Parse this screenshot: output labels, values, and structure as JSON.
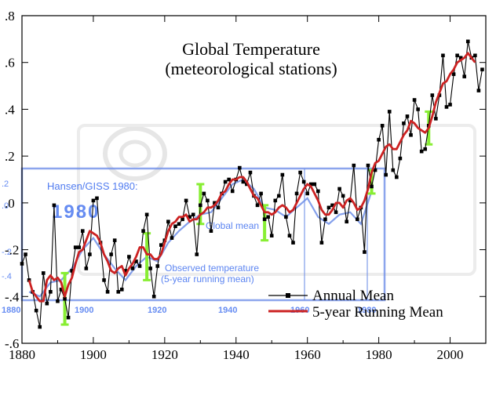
{
  "chart_data": {
    "type": "line",
    "title": "Global Temperature",
    "subtitle": "(meteorological stations)",
    "xlabel": "",
    "ylabel": "",
    "xlim": [
      1880,
      2010
    ],
    "ylim": [
      -0.6,
      0.8
    ],
    "x_ticks": [
      1880,
      1900,
      1920,
      1940,
      1960,
      1980,
      2000
    ],
    "y_ticks": [
      -0.6,
      -0.4,
      -0.2,
      0.0,
      0.2,
      0.4,
      0.6,
      0.8
    ],
    "y_tick_labels": [
      "-.6",
      "-.4",
      "-.2",
      ".0",
      ".2",
      ".4",
      ".6",
      ".8"
    ],
    "grid": false,
    "legend": {
      "placement": "bottom-right",
      "entries": [
        {
          "name": "Annual Mean",
          "color": "#000000",
          "marker": "square"
        },
        {
          "name": "5-year Running Mean",
          "color": "#cc2222",
          "marker": "none"
        }
      ]
    },
    "series": [
      {
        "name": "Annual Mean",
        "color": "#000000",
        "x": [
          1880,
          1881,
          1882,
          1883,
          1884,
          1885,
          1886,
          1887,
          1888,
          1889,
          1890,
          1891,
          1892,
          1893,
          1894,
          1895,
          1896,
          1897,
          1898,
          1899,
          1900,
          1901,
          1902,
          1903,
          1904,
          1905,
          1906,
          1907,
          1908,
          1909,
          1910,
          1911,
          1912,
          1913,
          1914,
          1915,
          1916,
          1917,
          1918,
          1919,
          1920,
          1921,
          1922,
          1923,
          1924,
          1925,
          1926,
          1927,
          1928,
          1929,
          1930,
          1931,
          1932,
          1933,
          1934,
          1935,
          1936,
          1937,
          1938,
          1939,
          1940,
          1941,
          1942,
          1943,
          1944,
          1945,
          1946,
          1947,
          1948,
          1949,
          1950,
          1951,
          1952,
          1953,
          1954,
          1955,
          1956,
          1957,
          1958,
          1959,
          1960,
          1961,
          1962,
          1963,
          1964,
          1965,
          1966,
          1967,
          1968,
          1969,
          1970,
          1971,
          1972,
          1973,
          1974,
          1975,
          1976,
          1977,
          1978,
          1979,
          1980,
          1981,
          1982,
          1983,
          1984,
          1985,
          1986,
          1987,
          1988,
          1989,
          1990,
          1991,
          1992,
          1993,
          1994,
          1995,
          1996,
          1997,
          1998,
          1999,
          2000,
          2001,
          2002,
          2003,
          2004,
          2005,
          2006,
          2007,
          2008,
          2009
        ],
        "values": [
          -0.26,
          -0.22,
          -0.33,
          -0.38,
          -0.46,
          -0.53,
          -0.3,
          -0.43,
          -0.38,
          -0.01,
          -0.42,
          -0.37,
          -0.41,
          -0.49,
          -0.29,
          -0.19,
          -0.19,
          -0.12,
          -0.28,
          -0.22,
          0.01,
          0.02,
          -0.17,
          -0.33,
          -0.38,
          -0.22,
          -0.16,
          -0.38,
          -0.37,
          -0.29,
          -0.23,
          -0.28,
          -0.25,
          -0.27,
          -0.12,
          -0.05,
          -0.28,
          -0.4,
          -0.27,
          -0.18,
          -0.16,
          -0.08,
          -0.15,
          -0.1,
          -0.09,
          -0.07,
          0.01,
          -0.06,
          -0.05,
          -0.22,
          -0.01,
          0.04,
          0.01,
          -0.12,
          0.0,
          -0.02,
          0.04,
          0.09,
          0.1,
          0.05,
          0.1,
          0.15,
          0.09,
          0.08,
          0.13,
          0.03,
          -0.01,
          0.04,
          -0.07,
          -0.06,
          -0.14,
          0.01,
          0.03,
          0.12,
          -0.06,
          -0.14,
          -0.17,
          0.04,
          0.13,
          0.09,
          0.04,
          0.08,
          0.08,
          0.05,
          -0.17,
          -0.07,
          -0.02,
          -0.01,
          -0.04,
          0.06,
          0.03,
          -0.08,
          0.01,
          0.16,
          -0.07,
          -0.02,
          -0.21,
          0.16,
          0.07,
          0.14,
          0.27,
          0.33,
          0.12,
          0.39,
          0.14,
          0.11,
          0.19,
          0.34,
          0.37,
          0.29,
          0.44,
          0.4,
          0.22,
          0.23,
          0.33,
          0.46,
          0.36,
          0.46,
          0.63,
          0.41,
          0.42,
          0.55,
          0.63,
          0.62,
          0.54,
          0.69,
          0.62,
          0.63,
          0.48,
          0.57
        ]
      },
      {
        "name": "5-year Running Mean",
        "color": "#cc2222",
        "x": [
          1882,
          1883,
          1884,
          1885,
          1886,
          1887,
          1888,
          1889,
          1890,
          1891,
          1892,
          1893,
          1894,
          1895,
          1896,
          1897,
          1898,
          1899,
          1900,
          1901,
          1902,
          1903,
          1904,
          1905,
          1906,
          1907,
          1908,
          1909,
          1910,
          1911,
          1912,
          1913,
          1914,
          1915,
          1916,
          1917,
          1918,
          1919,
          1920,
          1921,
          1922,
          1923,
          1924,
          1925,
          1926,
          1927,
          1928,
          1929,
          1930,
          1931,
          1932,
          1933,
          1934,
          1935,
          1936,
          1937,
          1938,
          1939,
          1940,
          1941,
          1942,
          1943,
          1944,
          1945,
          1946,
          1947,
          1948,
          1949,
          1950,
          1951,
          1952,
          1953,
          1954,
          1955,
          1956,
          1957,
          1958,
          1959,
          1960,
          1961,
          1962,
          1963,
          1964,
          1965,
          1966,
          1967,
          1968,
          1969,
          1970,
          1971,
          1972,
          1973,
          1974,
          1975,
          1976,
          1977,
          1978,
          1979,
          1980,
          1981,
          1982,
          1983,
          1984,
          1985,
          1986,
          1987,
          1988,
          1989,
          1990,
          1991,
          1992,
          1993,
          1994,
          1995,
          1996,
          1997,
          1998,
          1999,
          2000,
          2001,
          2002,
          2003,
          2004,
          2005,
          2006,
          2007
        ],
        "values": [
          -0.33,
          -0.38,
          -0.4,
          -0.42,
          -0.42,
          -0.33,
          -0.31,
          -0.33,
          -0.32,
          -0.34,
          -0.4,
          -0.35,
          -0.32,
          -0.26,
          -0.21,
          -0.2,
          -0.16,
          -0.12,
          -0.13,
          -0.14,
          -0.17,
          -0.22,
          -0.25,
          -0.29,
          -0.3,
          -0.28,
          -0.27,
          -0.31,
          -0.28,
          -0.26,
          -0.23,
          -0.19,
          -0.19,
          -0.22,
          -0.22,
          -0.24,
          -0.24,
          -0.22,
          -0.17,
          -0.12,
          -0.09,
          -0.08,
          -0.06,
          -0.06,
          -0.05,
          -0.08,
          -0.07,
          -0.07,
          -0.05,
          -0.04,
          -0.02,
          -0.02,
          -0.01,
          0.01,
          0.04,
          0.05,
          0.08,
          0.1,
          0.1,
          0.11,
          0.11,
          0.09,
          0.06,
          0.03,
          0.02,
          -0.01,
          -0.04,
          -0.04,
          -0.05,
          -0.04,
          -0.02,
          -0.01,
          -0.02,
          -0.04,
          -0.03,
          0.0,
          0.03,
          0.06,
          0.08,
          0.07,
          0.04,
          0.01,
          -0.03,
          -0.05,
          -0.05,
          -0.03,
          0.0,
          0.0,
          -0.02,
          0.01,
          0.02,
          0.0,
          -0.03,
          -0.02,
          0.01,
          0.06,
          0.13,
          0.17,
          0.18,
          0.21,
          0.24,
          0.25,
          0.23,
          0.23,
          0.26,
          0.29,
          0.31,
          0.35,
          0.34,
          0.32,
          0.31,
          0.3,
          0.32,
          0.37,
          0.43,
          0.47,
          0.51,
          0.52,
          0.55,
          0.57,
          0.6,
          0.61,
          0.62,
          0.64,
          0.62,
          0.6
        ]
      }
    ],
    "error_bars": {
      "color": "#88ee33",
      "x": [
        1892,
        1915,
        1930,
        1948,
        1978,
        1994
      ],
      "low": [
        -0.52,
        -0.33,
        -0.09,
        -0.16,
        0.04,
        0.25
      ],
      "high": [
        -0.3,
        -0.13,
        0.08,
        -0.01,
        0.14,
        0.39
      ]
    },
    "overlay": {
      "label": "Hansen/GISS 1980:",
      "year": "1980",
      "global_mean_label": "Global mean",
      "observed_label": "Observed temperature",
      "running_mean_label": "(5-year running mean)",
      "color": "#3366ee",
      "x_tick_labels": [
        "1880",
        "1900",
        "1920",
        "1940",
        "1960",
        "1980"
      ],
      "y_tick_labels": [
        ".2",
        ".0",
        "-.2",
        "-.4"
      ],
      "curve": {
        "x": [
          1882,
          1885,
          1888,
          1891,
          1894,
          1897,
          1900,
          1903,
          1906,
          1909,
          1912,
          1915,
          1918,
          1921,
          1924,
          1927,
          1930,
          1933,
          1936,
          1939,
          1942,
          1945,
          1948,
          1951,
          1954,
          1957,
          1960,
          1963,
          1966,
          1969,
          1972,
          1975,
          1978
        ],
        "values": [
          -0.38,
          -0.4,
          -0.34,
          -0.33,
          -0.28,
          -0.2,
          -0.15,
          -0.22,
          -0.28,
          -0.33,
          -0.27,
          -0.23,
          -0.25,
          -0.17,
          -0.12,
          -0.08,
          -0.05,
          -0.04,
          0.02,
          0.08,
          0.1,
          0.06,
          -0.02,
          -0.03,
          -0.06,
          -0.02,
          0.02,
          -0.06,
          -0.09,
          -0.05,
          -0.04,
          -0.09,
          0.05
        ]
      }
    }
  }
}
